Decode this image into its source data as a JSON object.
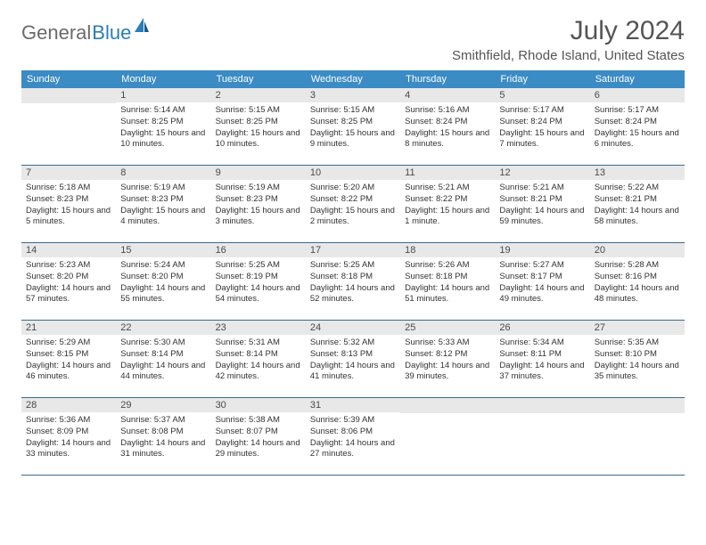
{
  "logo": {
    "text_gray": "General",
    "text_blue": "Blue"
  },
  "title": "July 2024",
  "location": "Smithfield, Rhode Island, United States",
  "colors": {
    "header_bg": "#3b8bc4",
    "header_text": "#ffffff",
    "daynum_bg": "#e8e8e8",
    "row_divider": "#3b6a8f",
    "logo_gray": "#6b6b6b",
    "logo_blue": "#2b7db8"
  },
  "weekdays": [
    "Sunday",
    "Monday",
    "Tuesday",
    "Wednesday",
    "Thursday",
    "Friday",
    "Saturday"
  ],
  "weeks": [
    [
      {
        "n": "",
        "sr": "",
        "ss": "",
        "dl": ""
      },
      {
        "n": "1",
        "sr": "Sunrise: 5:14 AM",
        "ss": "Sunset: 8:25 PM",
        "dl": "Daylight: 15 hours and 10 minutes."
      },
      {
        "n": "2",
        "sr": "Sunrise: 5:15 AM",
        "ss": "Sunset: 8:25 PM",
        "dl": "Daylight: 15 hours and 10 minutes."
      },
      {
        "n": "3",
        "sr": "Sunrise: 5:15 AM",
        "ss": "Sunset: 8:25 PM",
        "dl": "Daylight: 15 hours and 9 minutes."
      },
      {
        "n": "4",
        "sr": "Sunrise: 5:16 AM",
        "ss": "Sunset: 8:24 PM",
        "dl": "Daylight: 15 hours and 8 minutes."
      },
      {
        "n": "5",
        "sr": "Sunrise: 5:17 AM",
        "ss": "Sunset: 8:24 PM",
        "dl": "Daylight: 15 hours and 7 minutes."
      },
      {
        "n": "6",
        "sr": "Sunrise: 5:17 AM",
        "ss": "Sunset: 8:24 PM",
        "dl": "Daylight: 15 hours and 6 minutes."
      }
    ],
    [
      {
        "n": "7",
        "sr": "Sunrise: 5:18 AM",
        "ss": "Sunset: 8:23 PM",
        "dl": "Daylight: 15 hours and 5 minutes."
      },
      {
        "n": "8",
        "sr": "Sunrise: 5:19 AM",
        "ss": "Sunset: 8:23 PM",
        "dl": "Daylight: 15 hours and 4 minutes."
      },
      {
        "n": "9",
        "sr": "Sunrise: 5:19 AM",
        "ss": "Sunset: 8:23 PM",
        "dl": "Daylight: 15 hours and 3 minutes."
      },
      {
        "n": "10",
        "sr": "Sunrise: 5:20 AM",
        "ss": "Sunset: 8:22 PM",
        "dl": "Daylight: 15 hours and 2 minutes."
      },
      {
        "n": "11",
        "sr": "Sunrise: 5:21 AM",
        "ss": "Sunset: 8:22 PM",
        "dl": "Daylight: 15 hours and 1 minute."
      },
      {
        "n": "12",
        "sr": "Sunrise: 5:21 AM",
        "ss": "Sunset: 8:21 PM",
        "dl": "Daylight: 14 hours and 59 minutes."
      },
      {
        "n": "13",
        "sr": "Sunrise: 5:22 AM",
        "ss": "Sunset: 8:21 PM",
        "dl": "Daylight: 14 hours and 58 minutes."
      }
    ],
    [
      {
        "n": "14",
        "sr": "Sunrise: 5:23 AM",
        "ss": "Sunset: 8:20 PM",
        "dl": "Daylight: 14 hours and 57 minutes."
      },
      {
        "n": "15",
        "sr": "Sunrise: 5:24 AM",
        "ss": "Sunset: 8:20 PM",
        "dl": "Daylight: 14 hours and 55 minutes."
      },
      {
        "n": "16",
        "sr": "Sunrise: 5:25 AM",
        "ss": "Sunset: 8:19 PM",
        "dl": "Daylight: 14 hours and 54 minutes."
      },
      {
        "n": "17",
        "sr": "Sunrise: 5:25 AM",
        "ss": "Sunset: 8:18 PM",
        "dl": "Daylight: 14 hours and 52 minutes."
      },
      {
        "n": "18",
        "sr": "Sunrise: 5:26 AM",
        "ss": "Sunset: 8:18 PM",
        "dl": "Daylight: 14 hours and 51 minutes."
      },
      {
        "n": "19",
        "sr": "Sunrise: 5:27 AM",
        "ss": "Sunset: 8:17 PM",
        "dl": "Daylight: 14 hours and 49 minutes."
      },
      {
        "n": "20",
        "sr": "Sunrise: 5:28 AM",
        "ss": "Sunset: 8:16 PM",
        "dl": "Daylight: 14 hours and 48 minutes."
      }
    ],
    [
      {
        "n": "21",
        "sr": "Sunrise: 5:29 AM",
        "ss": "Sunset: 8:15 PM",
        "dl": "Daylight: 14 hours and 46 minutes."
      },
      {
        "n": "22",
        "sr": "Sunrise: 5:30 AM",
        "ss": "Sunset: 8:14 PM",
        "dl": "Daylight: 14 hours and 44 minutes."
      },
      {
        "n": "23",
        "sr": "Sunrise: 5:31 AM",
        "ss": "Sunset: 8:14 PM",
        "dl": "Daylight: 14 hours and 42 minutes."
      },
      {
        "n": "24",
        "sr": "Sunrise: 5:32 AM",
        "ss": "Sunset: 8:13 PM",
        "dl": "Daylight: 14 hours and 41 minutes."
      },
      {
        "n": "25",
        "sr": "Sunrise: 5:33 AM",
        "ss": "Sunset: 8:12 PM",
        "dl": "Daylight: 14 hours and 39 minutes."
      },
      {
        "n": "26",
        "sr": "Sunrise: 5:34 AM",
        "ss": "Sunset: 8:11 PM",
        "dl": "Daylight: 14 hours and 37 minutes."
      },
      {
        "n": "27",
        "sr": "Sunrise: 5:35 AM",
        "ss": "Sunset: 8:10 PM",
        "dl": "Daylight: 14 hours and 35 minutes."
      }
    ],
    [
      {
        "n": "28",
        "sr": "Sunrise: 5:36 AM",
        "ss": "Sunset: 8:09 PM",
        "dl": "Daylight: 14 hours and 33 minutes."
      },
      {
        "n": "29",
        "sr": "Sunrise: 5:37 AM",
        "ss": "Sunset: 8:08 PM",
        "dl": "Daylight: 14 hours and 31 minutes."
      },
      {
        "n": "30",
        "sr": "Sunrise: 5:38 AM",
        "ss": "Sunset: 8:07 PM",
        "dl": "Daylight: 14 hours and 29 minutes."
      },
      {
        "n": "31",
        "sr": "Sunrise: 5:39 AM",
        "ss": "Sunset: 8:06 PM",
        "dl": "Daylight: 14 hours and 27 minutes."
      },
      {
        "n": "",
        "sr": "",
        "ss": "",
        "dl": ""
      },
      {
        "n": "",
        "sr": "",
        "ss": "",
        "dl": ""
      },
      {
        "n": "",
        "sr": "",
        "ss": "",
        "dl": ""
      }
    ]
  ]
}
